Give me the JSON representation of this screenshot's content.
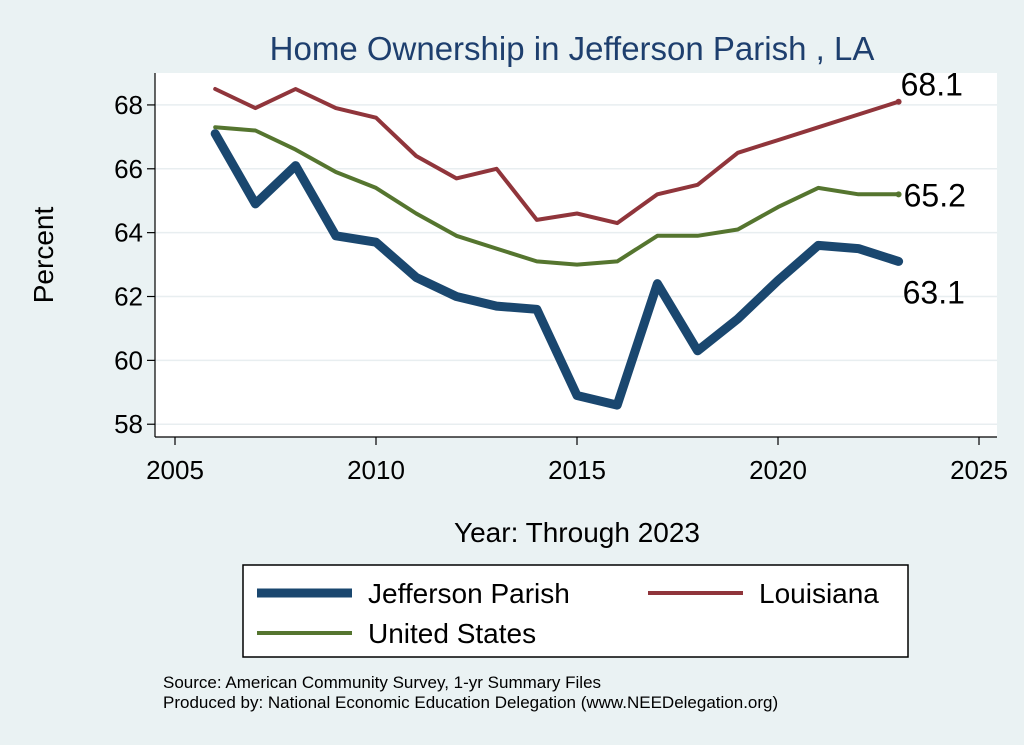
{
  "chart_data": {
    "type": "line",
    "title": "Home Ownership in Jefferson Parish , LA",
    "xlabel": "Year: Through 2023",
    "ylabel": "Percent",
    "xlim": [
      2005,
      2025
    ],
    "ylim": [
      57.6,
      69
    ],
    "x_ticks": [
      2005,
      2010,
      2015,
      2020,
      2025
    ],
    "x_tick_labels": [
      "2005",
      "2010",
      "2015",
      "2020",
      "2025"
    ],
    "y_ticks": [
      58,
      60,
      62,
      64,
      66,
      68
    ],
    "y_tick_labels": [
      "58",
      "60",
      "62",
      "64",
      "66",
      "68"
    ],
    "grid": true,
    "legend_position": "bottom",
    "series": [
      {
        "name": "Jefferson Parish",
        "color": "#1a476f",
        "x": [
          2006,
          2007,
          2008,
          2009,
          2010,
          2011,
          2012,
          2013,
          2014,
          2015,
          2016,
          2017,
          2018,
          2019,
          2020,
          2021,
          2022,
          2023
        ],
        "values": [
          67.1,
          64.9,
          66.1,
          63.9,
          63.7,
          62.6,
          62.0,
          61.7,
          61.6,
          58.9,
          58.6,
          62.4,
          60.3,
          61.3,
          62.5,
          63.6,
          63.5,
          63.1
        ],
        "end_label": "63.1"
      },
      {
        "name": "Louisiana",
        "color": "#90353b",
        "x": [
          2006,
          2007,
          2008,
          2009,
          2010,
          2011,
          2012,
          2013,
          2014,
          2015,
          2016,
          2017,
          2018,
          2019,
          2020,
          2021,
          2022,
          2023
        ],
        "values": [
          68.5,
          67.9,
          68.5,
          67.9,
          67.6,
          66.4,
          65.7,
          66.0,
          64.4,
          64.6,
          64.3,
          65.2,
          65.5,
          66.5,
          66.9,
          67.3,
          67.7,
          68.1
        ],
        "end_label": "68.1"
      },
      {
        "name": "United States",
        "color": "#55752f",
        "x": [
          2006,
          2007,
          2008,
          2009,
          2010,
          2011,
          2012,
          2013,
          2014,
          2015,
          2016,
          2017,
          2018,
          2019,
          2020,
          2021,
          2022,
          2023
        ],
        "values": [
          67.3,
          67.2,
          66.6,
          65.9,
          65.4,
          64.6,
          63.9,
          63.5,
          63.1,
          63.0,
          63.1,
          63.9,
          63.9,
          64.1,
          64.8,
          65.4,
          65.2,
          65.2
        ],
        "end_label": "65.2"
      }
    ]
  },
  "footer": {
    "source": "Source: American Community Survey, 1-yr Summary Files",
    "produced_by": "Produced by: National Economic Education Delegation (www.NEEDelegation.org)"
  }
}
